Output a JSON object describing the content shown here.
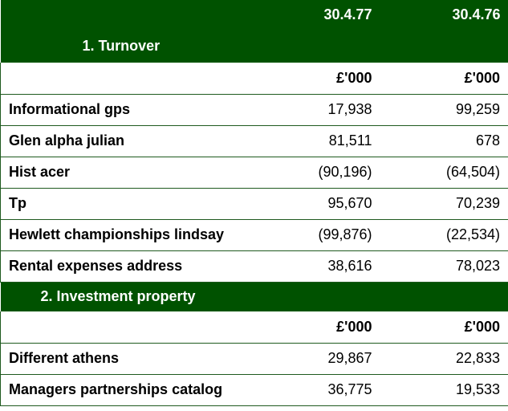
{
  "header": {
    "col1": "30.4.77",
    "col2": "30.4.76"
  },
  "sections": [
    {
      "title": "1. Turnover",
      "units": [
        "£'000",
        "£'000"
      ],
      "rows": [
        {
          "label": "Informational gps",
          "v1": "17,938",
          "v2": "99,259"
        },
        {
          "label": "Glen alpha julian",
          "v1": "81,511",
          "v2": "678"
        },
        {
          "label": "Hist acer",
          "v1": "(90,196)",
          "v2": "(64,504)"
        },
        {
          "label": "Tp",
          "v1": "95,670",
          "v2": "70,239"
        },
        {
          "label": "Hewlett championships lindsay",
          "v1": "(99,876)",
          "v2": "(22,534)"
        },
        {
          "label": "Rental expenses address",
          "v1": "38,616",
          "v2": "78,023"
        }
      ]
    },
    {
      "title": "2. Investment property",
      "units": [
        "£'000",
        "£'000"
      ],
      "rows": [
        {
          "label": "Different athens",
          "v1": "29,867",
          "v2": "22,833"
        },
        {
          "label": "Managers partnerships catalog",
          "v1": "36,775",
          "v2": "19,533"
        }
      ]
    }
  ],
  "colors": {
    "header_bg": "#005200",
    "header_text": "#ffffff",
    "rule": "#1f5a1f"
  }
}
